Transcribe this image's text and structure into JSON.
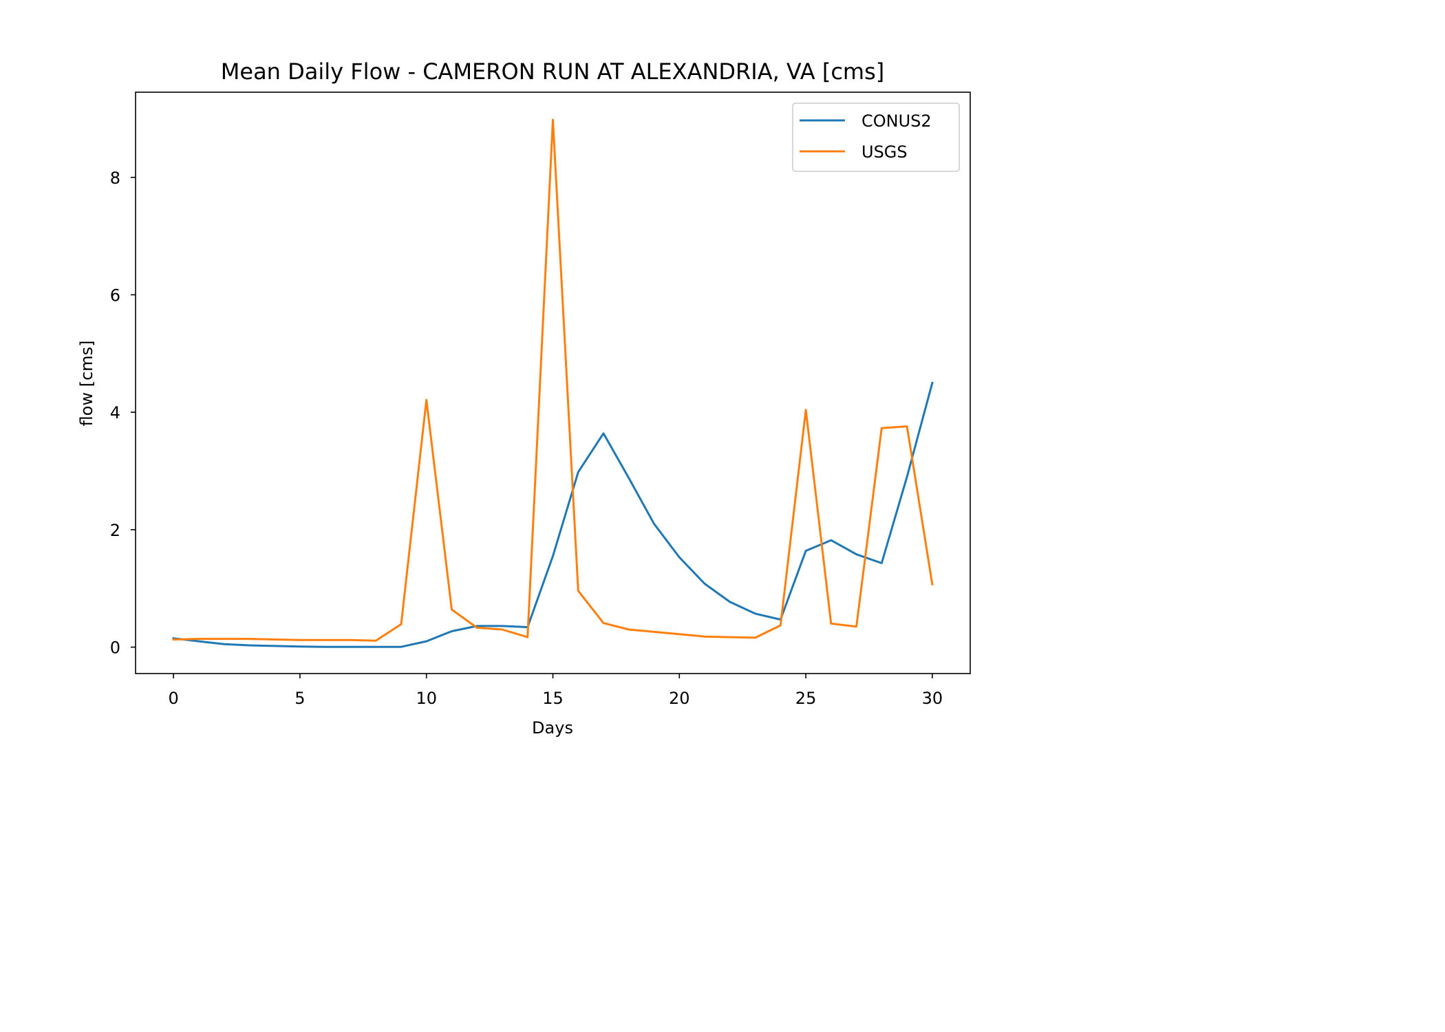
{
  "chart_data": {
    "type": "line",
    "title": "Mean Daily Flow - CAMERON RUN AT ALEXANDRIA, VA [cms]",
    "xlabel": "Days",
    "ylabel": "flow [cms]",
    "xlim": [
      -1.5,
      31.5
    ],
    "ylim": [
      -0.45,
      9.45
    ],
    "xticks": [
      0,
      5,
      10,
      15,
      20,
      25,
      30
    ],
    "yticks": [
      0,
      2,
      4,
      6,
      8
    ],
    "grid": false,
    "legend_position": "top-right",
    "x": [
      0,
      1,
      2,
      3,
      4,
      5,
      6,
      7,
      8,
      9,
      10,
      11,
      12,
      13,
      14,
      15,
      16,
      17,
      18,
      19,
      20,
      21,
      22,
      23,
      24,
      25,
      26,
      27,
      28,
      29,
      30
    ],
    "series": [
      {
        "name": "CONUS2",
        "color": "#1f77b4",
        "values": [
          0.15,
          0.1,
          0.05,
          0.03,
          0.02,
          0.01,
          0.005,
          0.005,
          0.005,
          0.005,
          0.1,
          0.27,
          0.36,
          0.36,
          0.34,
          1.55,
          2.98,
          3.64,
          2.88,
          2.1,
          1.53,
          1.08,
          0.77,
          0.57,
          0.47,
          1.64,
          1.82,
          1.58,
          1.43,
          2.9,
          4.5
        ]
      },
      {
        "name": "USGS",
        "color": "#ff7f0e",
        "values": [
          0.13,
          0.14,
          0.14,
          0.14,
          0.13,
          0.12,
          0.12,
          0.12,
          0.11,
          0.39,
          4.21,
          0.64,
          0.33,
          0.3,
          0.17,
          8.98,
          0.96,
          0.41,
          0.3,
          0.26,
          0.22,
          0.18,
          0.17,
          0.16,
          0.37,
          4.04,
          0.4,
          0.35,
          3.73,
          3.76,
          1.07
        ]
      }
    ]
  }
}
